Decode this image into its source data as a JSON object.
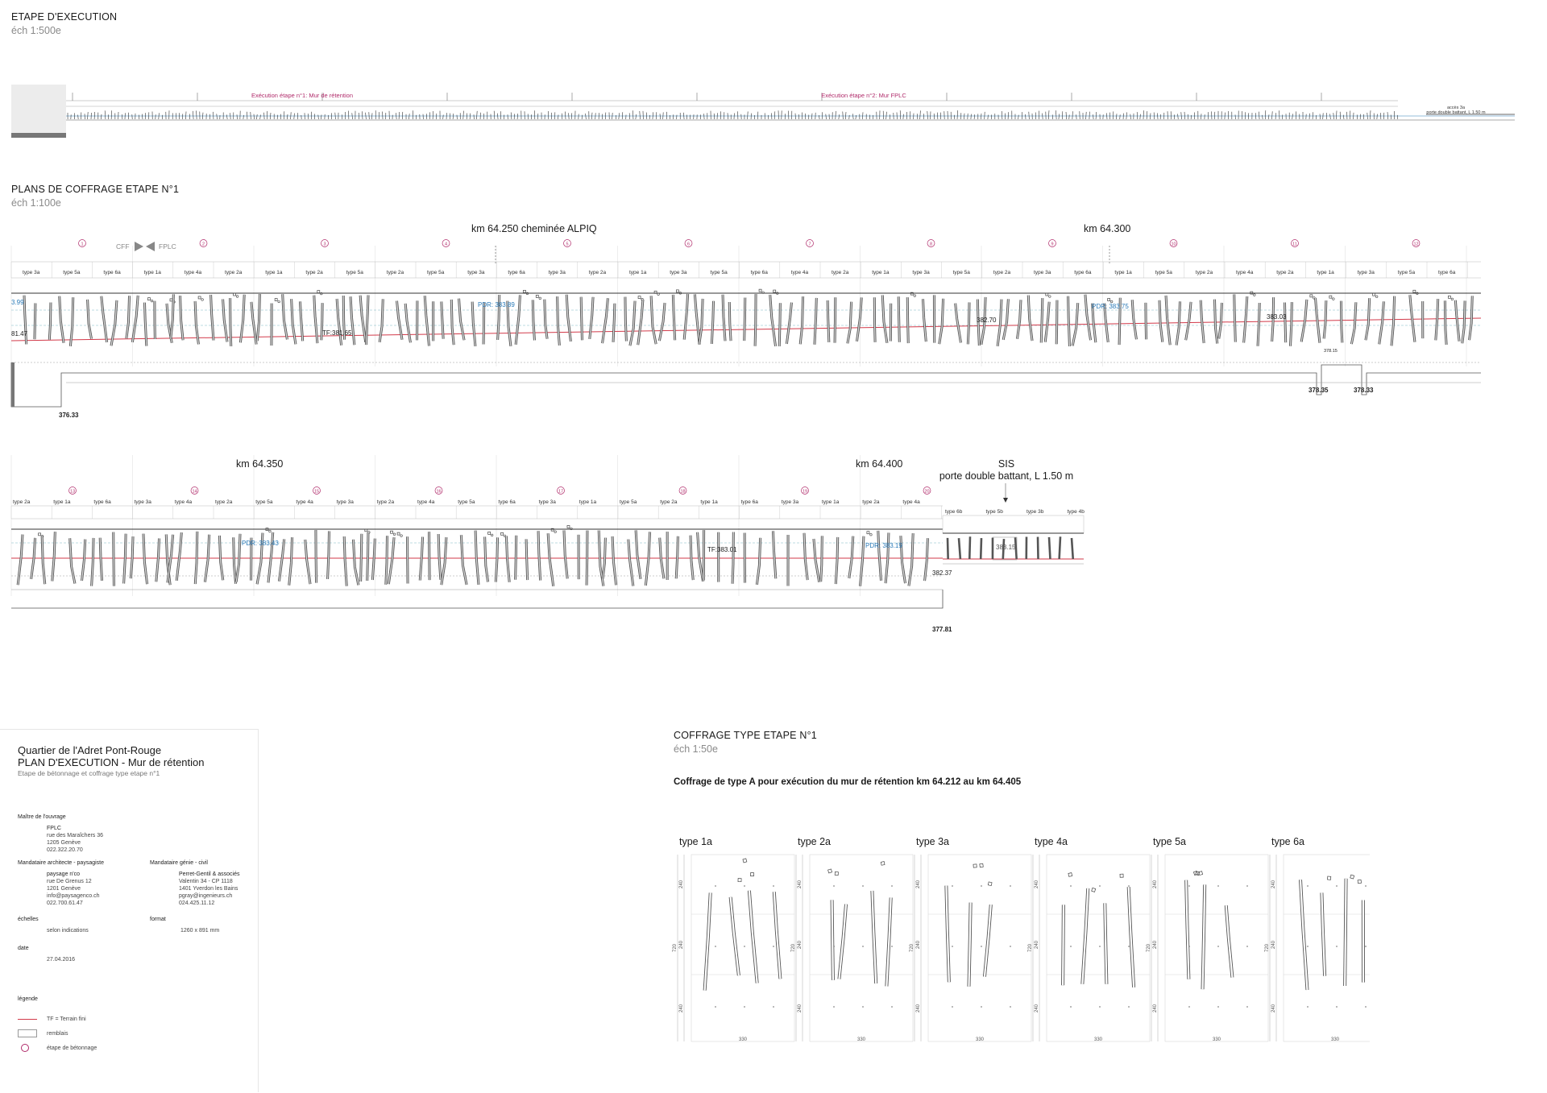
{
  "sections": {
    "execution": {
      "title": "ETAPE D'EXECUTION",
      "scale": "éch 1:500e"
    },
    "plans": {
      "title": "PLANS DE COFFRAGE ETAPE N°1",
      "scale": "éch 1:100e"
    },
    "coffrage": {
      "title": "COFFRAGE TYPE ETAPE N°1",
      "scale": "éch 1:50e",
      "description": "Coffrage de type A  pour exécution du mur de rétention km 64.212 au km 64.405"
    }
  },
  "execution_strip": {
    "stage1": "Exécution étape n°1: Mur de rétention",
    "stage2": "Exécution étape n°2: Mur FPLC",
    "note_line1": "accès 3a",
    "note_line2": "porte double battant, L 1.50 m"
  },
  "row1": {
    "cff": "CFF",
    "fplc": "FPLC",
    "km1": "km 64.250  cheminée ALPIQ",
    "km2": "km 64.300",
    "circles": [
      "1",
      "2",
      "3",
      "4",
      "5",
      "6",
      "7",
      "8",
      "9",
      "10",
      "11",
      "12"
    ],
    "types": [
      "type 3a",
      "type 5a",
      "type 6a",
      "type 1a",
      "type 4a",
      "type 2a",
      "type 1a",
      "type 2a",
      "type 5a",
      "type 2a",
      "type 5a",
      "type 3a",
      "type 6a",
      "type 3a",
      "type 2a",
      "type 1a",
      "type 3a",
      "type 5a",
      "type 6a",
      "type 4a",
      "type 2a",
      "type 1a",
      "type 3a",
      "type 5a",
      "type 2a",
      "type 3a",
      "type 6a",
      "type 1a",
      "type 5a",
      "type 2a",
      "type 4a",
      "type 2a",
      "type 1a",
      "type 3a",
      "type 5a",
      "type 6a"
    ],
    "levels": {
      "l_383_99": "3.99",
      "l_381_47": "81.47",
      "tf_381_65": "TF:381.65",
      "pdr_383_89": "PDR: 383.89",
      "l_382_70": "382.70",
      "pdr_383_75": "PDR: 383.75",
      "l_383_03": "383.03",
      "l_378_15": "378.15",
      "l_376_33": "376.33",
      "l_378_35": "378.35",
      "l_378_33": "378.33"
    }
  },
  "row2": {
    "km1": "km 64.350",
    "km2": "km 64.400",
    "sis_line1": "SIS",
    "sis_line2": "porte double battant, L 1.50 m",
    "circles": [
      "13",
      "14",
      "15",
      "16",
      "17",
      "18",
      "19",
      "20"
    ],
    "types": [
      "type 2a",
      "type 1a",
      "type 6a",
      "type 3a",
      "type 4a",
      "type 2a",
      "type 5a",
      "type 4a",
      "type 3a",
      "type 2a",
      "type 4a",
      "type 5a",
      "type 6a",
      "type 3a",
      "type 1a",
      "type 5a",
      "type 2a",
      "type 1a",
      "type 6a",
      "type 3a",
      "type 1a",
      "type 2a",
      "type 4a"
    ],
    "types_b": [
      "type 6b",
      "type 5b",
      "type 3b",
      "type 4b"
    ],
    "levels": {
      "pdr_383_43": "PDR: 383.43",
      "tf_383_01": "TF:383.01",
      "pdr_383_19": "PDR: 383.19",
      "l_383_15": "383.15",
      "l_382_37": "382.37",
      "l_377_81": "377.81"
    }
  },
  "title_block": {
    "project": "Quartier de l'Adret Pont-Rouge",
    "plan": "PLAN D'EXECUTION - Mur de rétention",
    "subtitle": "Etape de bétonnage et coffrage type etape n°1",
    "owner_label": "Maître de l'ouvrage",
    "owner": [
      "FPLC",
      "rue des Maraîchers 36",
      "1205 Genève",
      "022.322.20.70"
    ],
    "architect_label": "Mandataire architecte - paysagiste",
    "architect": [
      "paysage n'co",
      "rue De Grenus 12",
      "1201 Genève",
      "info@paysagenco.ch",
      "022.700.61.47"
    ],
    "engineer_label": "Mandataire génie - civil",
    "engineer": [
      "Perret-Gentil & associés",
      "Valentin 34 - CP 1118",
      "1401 Yverdon les Bains",
      "pgray@ingenieurs.ch",
      "024.425.11.12"
    ],
    "scales_label": "échelles",
    "scales_value": "selon indications",
    "format_label": "format",
    "format_value": "1260 x 891 mm",
    "date_label": "date",
    "date_value": "27.04.2016",
    "legend_label": "légende",
    "legend_tf": "TF = Terrain fini",
    "legend_remblais": "remblais",
    "legend_etape": "étape de bétonnage"
  },
  "types_detail": {
    "labels": [
      "type 1a",
      "type 2a",
      "type 3a",
      "type 4a",
      "type 5a",
      "type 6a"
    ],
    "dim_240": "240",
    "dim_720": "720",
    "dim_330": "330"
  },
  "colors": {
    "accent_red": "#d23a4a",
    "accent_blue": "#2a7ab8",
    "magenta": "#b02a6a"
  }
}
